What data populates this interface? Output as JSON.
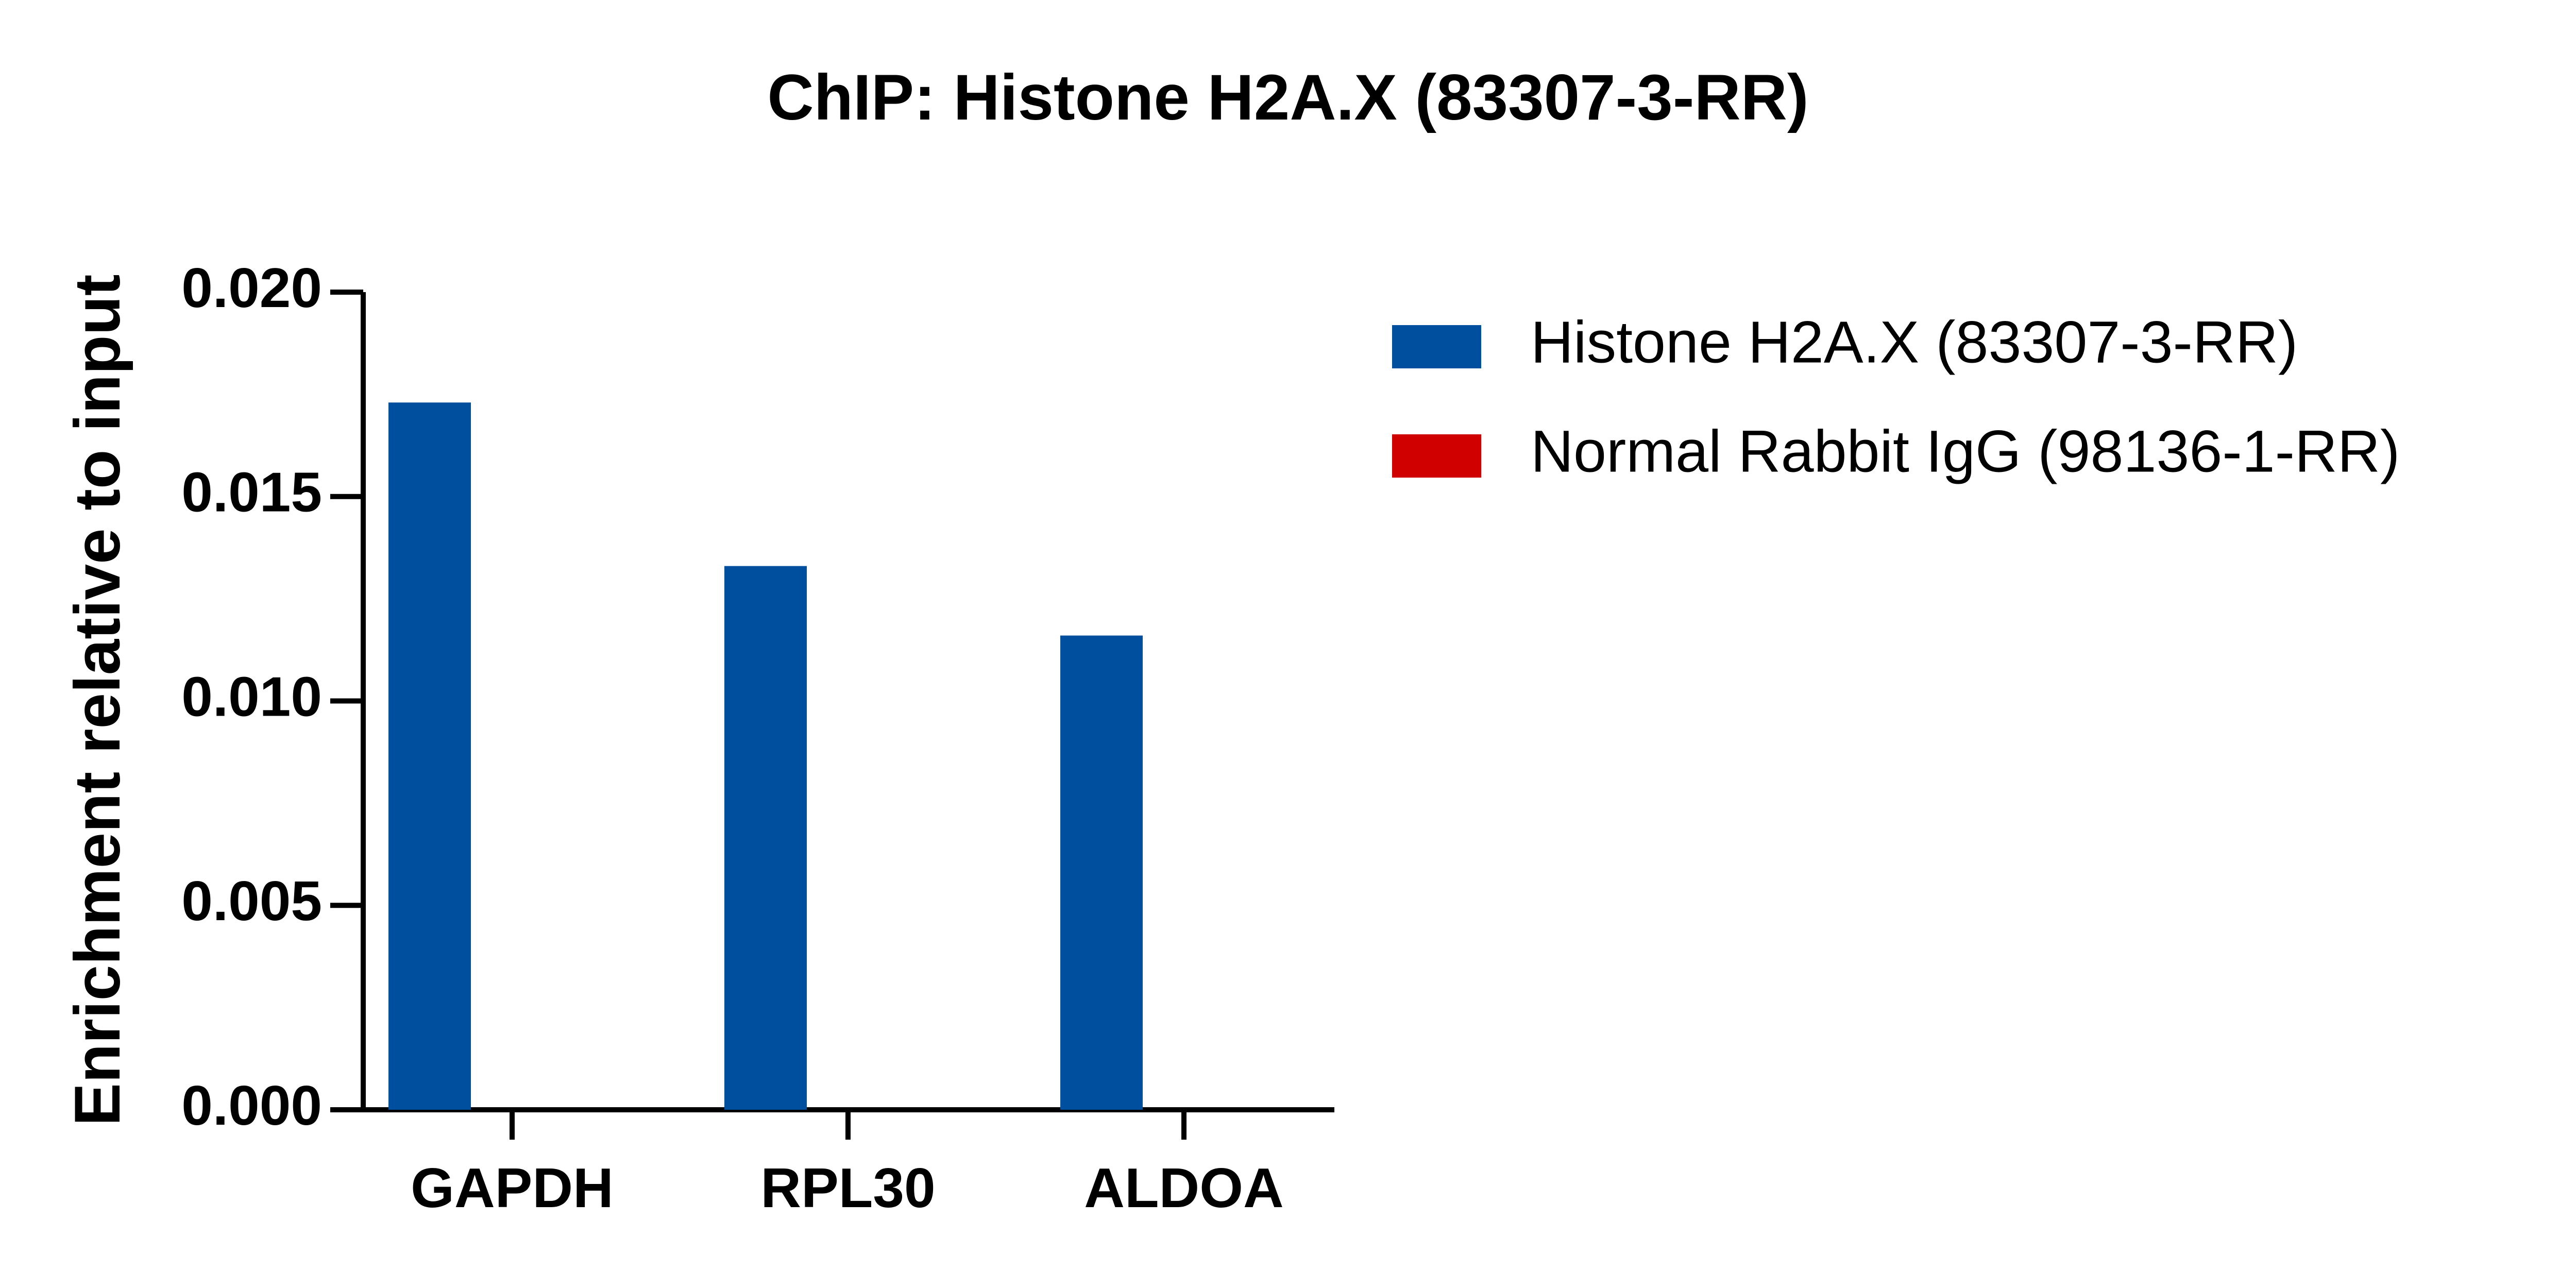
{
  "chart_data": {
    "type": "bar",
    "title": "ChIP: Histone H2A.X (83307-3-RR)",
    "y_label": "Enrichment relative to input",
    "categories": [
      "GAPDH",
      "RPL30",
      "ALDOA"
    ],
    "series": [
      {
        "name": "Histone H2A.X (83307-3-RR)",
        "color": "#004f9f",
        "values": [
          0.0173,
          0.0133,
          0.0116
        ]
      },
      {
        "name": "Normal Rabbit IgG (98136-1-RR)",
        "color": "#d00000",
        "values": [
          0,
          0,
          0
        ]
      }
    ],
    "ylim": [
      0,
      0.02
    ],
    "yticks": [
      {
        "value": 0,
        "label": "0.000"
      },
      {
        "value": 0.005,
        "label": "0.005"
      },
      {
        "value": 0.01,
        "label": "0.010"
      },
      {
        "value": 0.015,
        "label": "0.015"
      },
      {
        "value": 0.02,
        "label": "0.020"
      }
    ],
    "legend": "top-right"
  }
}
